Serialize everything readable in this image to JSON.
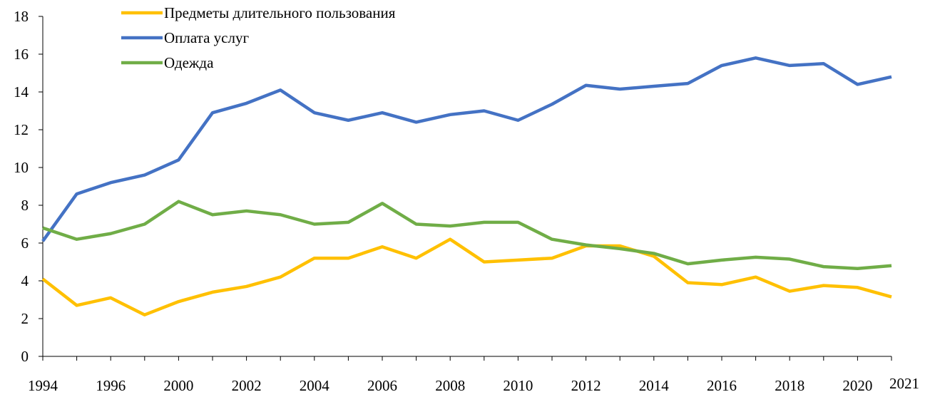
{
  "chart_data": {
    "type": "line",
    "categories": [
      "1994",
      null,
      "1996",
      null,
      "2000",
      null,
      "2002",
      null,
      "2004",
      null,
      "2006",
      null,
      "2008",
      null,
      "2010",
      null,
      "2012",
      null,
      "2014",
      null,
      "2016",
      null,
      "2018",
      null,
      "2020",
      "2021"
    ],
    "series": [
      {
        "name": "Предметы длительного пользования",
        "color": "#ffc000",
        "values": [
          4.1,
          2.7,
          3.1,
          2.2,
          2.9,
          3.4,
          3.7,
          4.2,
          5.2,
          5.2,
          5.8,
          5.2,
          6.2,
          5.0,
          5.1,
          5.2,
          5.85,
          5.85,
          5.3,
          3.9,
          3.8,
          4.2,
          3.45,
          3.75,
          3.65,
          3.15
        ]
      },
      {
        "name": "Оплата услуг",
        "color": "#4472c4",
        "values": [
          6.1,
          8.6,
          9.2,
          9.6,
          10.4,
          12.9,
          13.4,
          14.1,
          12.9,
          12.5,
          12.9,
          12.4,
          12.8,
          13.0,
          12.5,
          13.35,
          14.35,
          14.15,
          14.3,
          14.45,
          15.4,
          15.8,
          15.4,
          15.5,
          14.4,
          14.8
        ]
      },
      {
        "name": "Одежда",
        "color": "#70ad47",
        "values": [
          6.8,
          6.2,
          6.5,
          7.0,
          8.2,
          7.5,
          7.7,
          7.5,
          7.0,
          7.1,
          8.1,
          7.0,
          6.9,
          7.1,
          7.1,
          6.2,
          5.9,
          5.7,
          5.45,
          4.9,
          5.1,
          5.25,
          5.15,
          4.75,
          4.65,
          4.8
        ]
      }
    ],
    "ylim": [
      0,
      18
    ],
    "yticks": [
      0,
      2,
      4,
      6,
      8,
      10,
      12,
      14,
      16,
      18
    ],
    "grid": false,
    "legend": "top-left"
  }
}
